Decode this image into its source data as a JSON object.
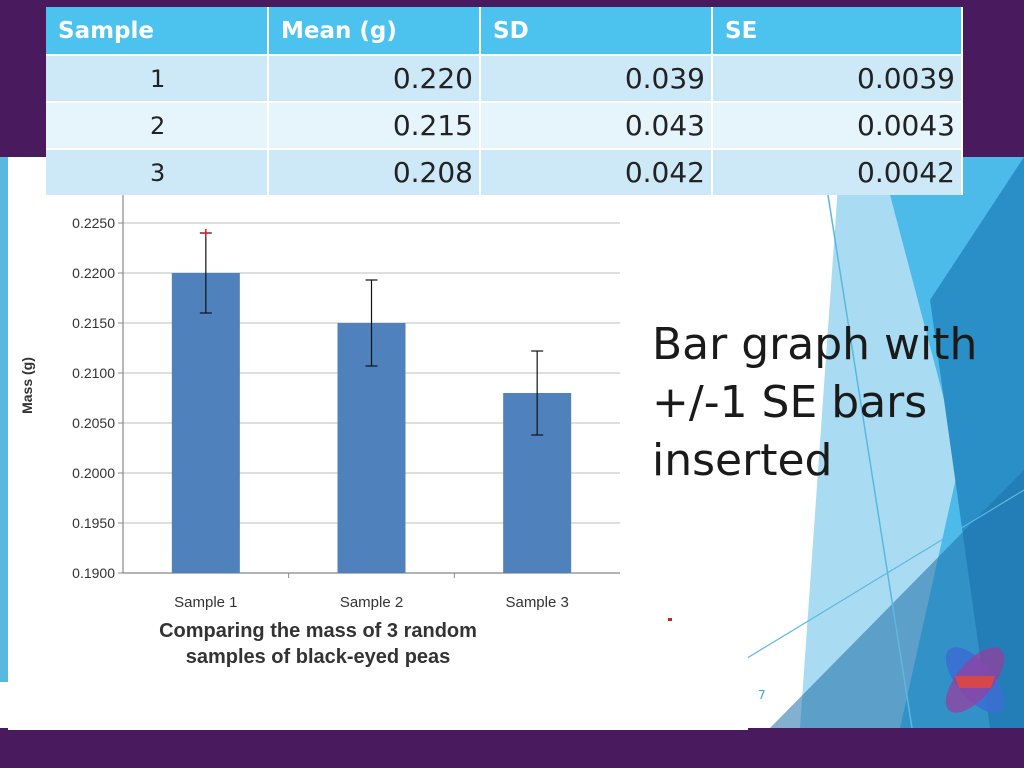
{
  "table": {
    "headers": [
      "Sample",
      "Mean  (g)",
      "SD",
      "SE"
    ],
    "rows": [
      [
        "1",
        "0.220",
        "0.039",
        "0.0039"
      ],
      [
        "2",
        "0.215",
        "0.043",
        "0.0043"
      ],
      [
        "3",
        "0.208",
        "0.042",
        "0.0042"
      ]
    ]
  },
  "chart_data": {
    "type": "bar",
    "categories": [
      "Sample 1",
      "Sample 2",
      "Sample 3"
    ],
    "values": [
      0.22,
      0.215,
      0.208
    ],
    "error": [
      0.004,
      0.0043,
      0.0042
    ],
    "title": "Comparing the mass of 3 random\nsamples of black-eyed peas",
    "xlabel": "",
    "ylabel": "Mass (g)",
    "ylim": [
      0.19,
      0.2275
    ],
    "yticks": [
      "0.1900",
      "0.1950",
      "0.2000",
      "0.2050",
      "0.2100",
      "0.2150",
      "0.2200",
      "0.2250"
    ],
    "grid": true,
    "legend": "none",
    "bar_color": "#4f81bd"
  },
  "caption": "Bar graph with +/-1 SE bars inserted",
  "page_number": "7",
  "colors": {
    "frame": "#4a1a5e",
    "table_header": "#4cc3ef",
    "accent": "#3aa7d8"
  }
}
